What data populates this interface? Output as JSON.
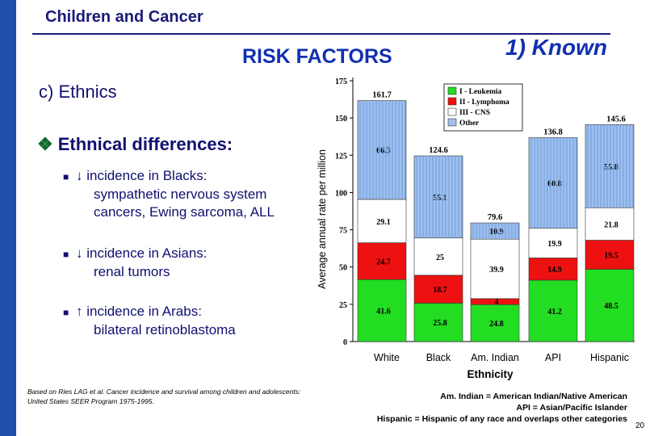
{
  "header": {
    "title": "Children and Cancer"
  },
  "subtitle": "RISK FACTORS",
  "known": "1) Known",
  "section": "c)  Ethnics",
  "differences": {
    "heading": "Ethnical differences:",
    "items": [
      {
        "arrow": "↓",
        "line1": "incidence in Blacks:",
        "line2": "sympathetic nervous system",
        "line3": "cancers, Ewing sarcoma, ALL"
      },
      {
        "arrow": "↓",
        "line1": "incidence in Asians:",
        "line2": "renal tumors"
      },
      {
        "arrow": "↑",
        "line1": " incidence in Arabs:",
        "line2": "bilateral retinoblastoma"
      }
    ]
  },
  "citation": "Based on Ries LAG et al. Cancer incidence and survival among children and adolescents: United States SEER Program 1975-1995.",
  "abbreviations": [
    "Am. Indian = American Indian/Native American",
    "API = Asian/Pacific Islander",
    "Hispanic = Hispanic of any race and overlaps other categories"
  ],
  "page_number": "20",
  "chart_data": {
    "type": "bar",
    "stacked": true,
    "ylabel": "Average annual rate per million",
    "xlabel": "Ethnicity",
    "ylim": [
      0,
      175
    ],
    "yticks": [
      0,
      25,
      50,
      75,
      100,
      125,
      150,
      175
    ],
    "categories": [
      "White",
      "Black",
      "Am. Indian",
      "API",
      "Hispanic"
    ],
    "series": [
      {
        "name": "I - Leukemia",
        "color": "#22dd22",
        "values": [
          41.6,
          25.8,
          24.8,
          41.2,
          48.5
        ]
      },
      {
        "name": "II - Lymphoma",
        "color": "#ee1111",
        "values": [
          24.7,
          18.7,
          4,
          14.9,
          19.5
        ]
      },
      {
        "name": "III - CNS",
        "color": "#ffffff",
        "values": [
          29.1,
          25,
          39.9,
          19.9,
          21.8
        ]
      },
      {
        "name": "Other",
        "color": "#9ec0ee",
        "values": [
          66.3,
          55.1,
          10.9,
          60.8,
          55.8
        ]
      }
    ],
    "totals": [
      161.7,
      124.6,
      79.6,
      136.8,
      145.6
    ],
    "segment_labels": [
      [
        "41.6",
        "24.7",
        "29.1",
        "66.3"
      ],
      [
        "25.8",
        "18.7",
        "25",
        "55.1"
      ],
      [
        "24.8",
        "4",
        "39.9",
        "10.9"
      ],
      [
        "41.2",
        "14.9",
        "19.9",
        "60.8"
      ],
      [
        "48.5",
        "19.5",
        "21.8",
        "55.8"
      ]
    ],
    "legend_position": "top-right"
  }
}
